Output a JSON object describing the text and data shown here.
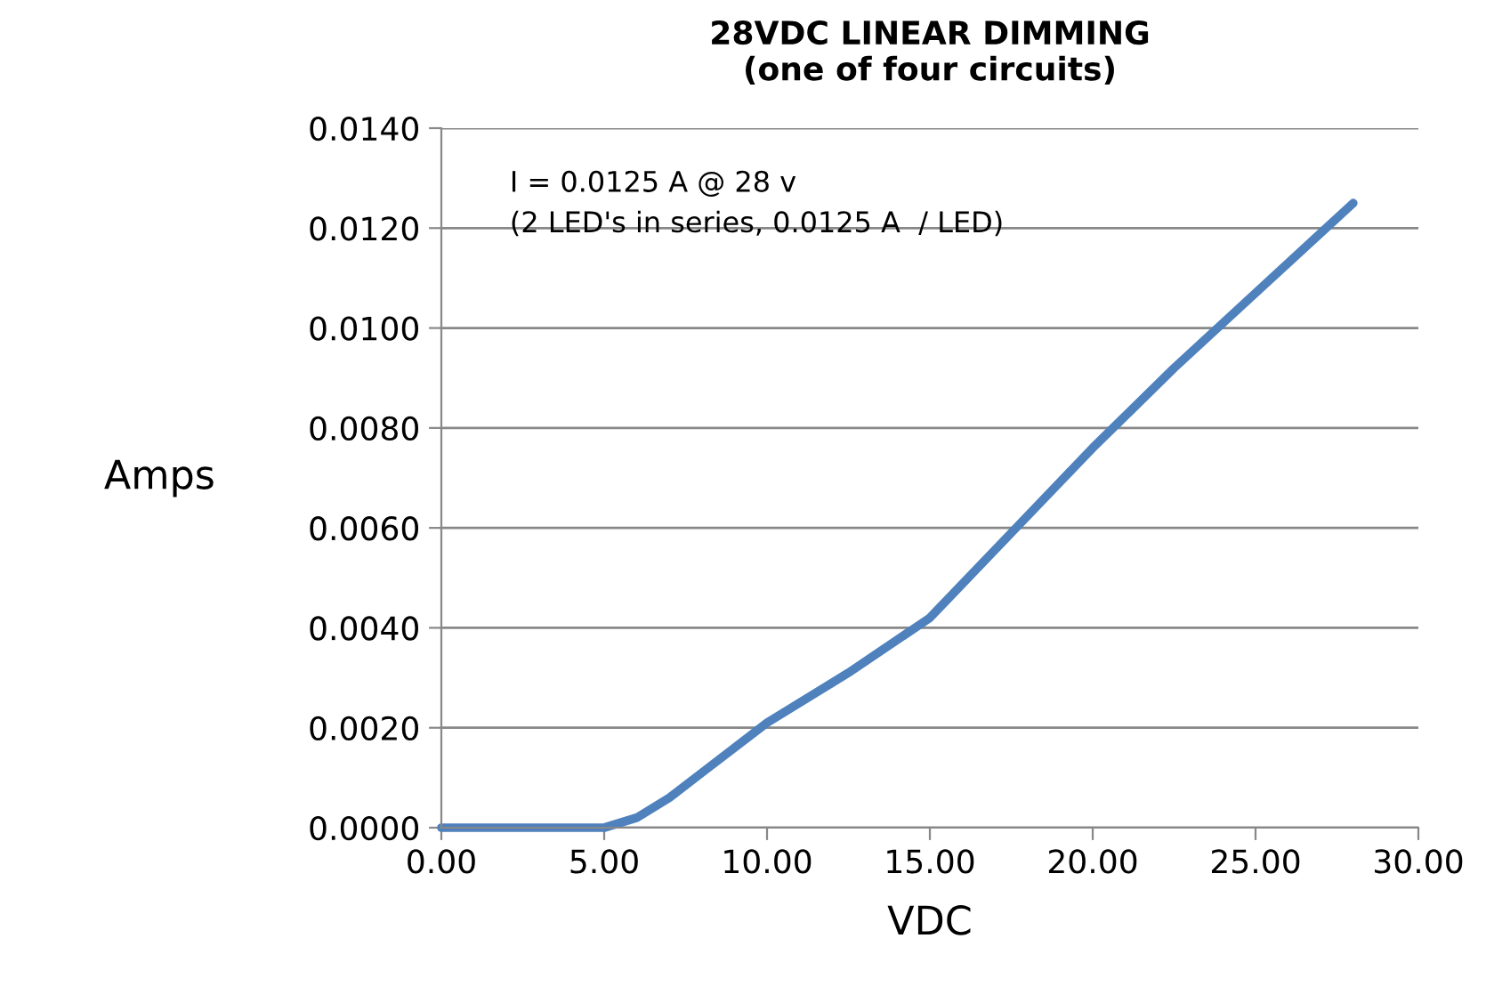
{
  "chart_data": {
    "type": "line",
    "title": "28VDC LINEAR DIMMING\n(one of four circuits)",
    "xlabel": "VDC",
    "ylabel": "Amps",
    "x": [
      0,
      5,
      6,
      7,
      8,
      10,
      12.5,
      15,
      17.5,
      20,
      22.5,
      25,
      28
    ],
    "series": [
      {
        "color": "#4f81bd",
        "values": [
          0,
          0,
          0.0002,
          0.0006,
          0.0011,
          0.0021,
          0.0031,
          0.0042,
          0.0059,
          0.0076,
          0.0092,
          0.0107,
          0.0125
        ]
      }
    ],
    "xlim": [
      0,
      30
    ],
    "ylim": [
      0,
      0.014
    ],
    "xticks": [
      {
        "value": 0,
        "label": "0.00"
      },
      {
        "value": 5,
        "label": "5.00"
      },
      {
        "value": 10,
        "label": "10.00"
      },
      {
        "value": 15,
        "label": "15.00"
      },
      {
        "value": 20,
        "label": "20.00"
      },
      {
        "value": 25,
        "label": "25.00"
      },
      {
        "value": 30,
        "label": "30.00"
      }
    ],
    "yticks": [
      {
        "value": 0,
        "label": "0.0000"
      },
      {
        "value": 0.002,
        "label": "0.0020"
      },
      {
        "value": 0.004,
        "label": "0.0040"
      },
      {
        "value": 0.006,
        "label": "0.0060"
      },
      {
        "value": 0.008,
        "label": "0.0080"
      },
      {
        "value": 0.01,
        "label": "0.0100"
      },
      {
        "value": 0.012,
        "label": "0.0120"
      },
      {
        "value": 0.014,
        "label": "0.0140"
      }
    ],
    "grid": "y",
    "annotations": [
      "I = 0.0125 A @ 28 v\n(2 LED's in series, 0.0125 A  / LED)"
    ]
  }
}
